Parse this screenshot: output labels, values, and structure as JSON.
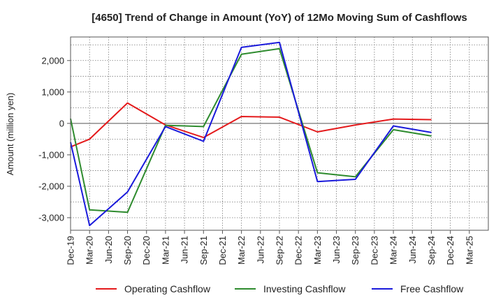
{
  "chart_data": {
    "type": "line",
    "title": "[4650]  Trend of Change in Amount (YoY) of 12Mo Moving Sum of Cashflows",
    "xlabel": "",
    "ylabel": "Amount (million yen)",
    "ylim": [
      -3400,
      2750
    ],
    "yticks": [
      -3000,
      -2000,
      -1000,
      0,
      1000,
      2000
    ],
    "ytick_labels": [
      "-3,000",
      "-2,000",
      "-1,000",
      "0",
      "1,000",
      "2,000"
    ],
    "categories": [
      "Dec-19",
      "Mar-20",
      "Jun-20",
      "Sep-20",
      "Dec-20",
      "Mar-21",
      "Jun-21",
      "Sep-21",
      "Dec-21",
      "Mar-22",
      "Jun-22",
      "Sep-22",
      "Dec-22",
      "Mar-23",
      "Jun-23",
      "Sep-23",
      "Dec-23",
      "Mar-24",
      "Jun-24",
      "Sep-24",
      "Dec-24",
      "Mar-25"
    ],
    "grid": true,
    "legend_position": "bottom",
    "series": [
      {
        "name": "Operating Cashflow",
        "color": "#e41a1c",
        "points": [
          {
            "x": "Dec-19",
            "y": -750
          },
          {
            "x": "Mar-20",
            "y": -500
          },
          {
            "x": "Sep-20",
            "y": 650
          },
          {
            "x": "Mar-21",
            "y": -50
          },
          {
            "x": "Sep-21",
            "y": -450
          },
          {
            "x": "Mar-22",
            "y": 220
          },
          {
            "x": "Sep-22",
            "y": 200
          },
          {
            "x": "Mar-23",
            "y": -270
          },
          {
            "x": "Sep-23",
            "y": -50
          },
          {
            "x": "Mar-24",
            "y": 140
          },
          {
            "x": "Sep-24",
            "y": 120
          }
        ]
      },
      {
        "name": "Investing Cashflow",
        "color": "#2e8b2e",
        "points": [
          {
            "x": "Dec-19",
            "y": 150
          },
          {
            "x": "Mar-20",
            "y": -2750
          },
          {
            "x": "Sep-20",
            "y": -2830
          },
          {
            "x": "Mar-21",
            "y": -60
          },
          {
            "x": "Sep-21",
            "y": -100
          },
          {
            "x": "Mar-22",
            "y": 2200
          },
          {
            "x": "Sep-22",
            "y": 2380
          },
          {
            "x": "Mar-23",
            "y": -1570
          },
          {
            "x": "Sep-23",
            "y": -1700
          },
          {
            "x": "Mar-24",
            "y": -200
          },
          {
            "x": "Sep-24",
            "y": -400
          }
        ]
      },
      {
        "name": "Free Cashflow",
        "color": "#1a1adb",
        "points": [
          {
            "x": "Dec-19",
            "y": -600
          },
          {
            "x": "Mar-20",
            "y": -3250
          },
          {
            "x": "Sep-20",
            "y": -2180
          },
          {
            "x": "Mar-21",
            "y": -100
          },
          {
            "x": "Sep-21",
            "y": -570
          },
          {
            "x": "Mar-22",
            "y": 2420
          },
          {
            "x": "Sep-22",
            "y": 2580
          },
          {
            "x": "Mar-23",
            "y": -1850
          },
          {
            "x": "Sep-23",
            "y": -1780
          },
          {
            "x": "Mar-24",
            "y": -80
          },
          {
            "x": "Sep-24",
            "y": -290
          }
        ]
      }
    ]
  }
}
